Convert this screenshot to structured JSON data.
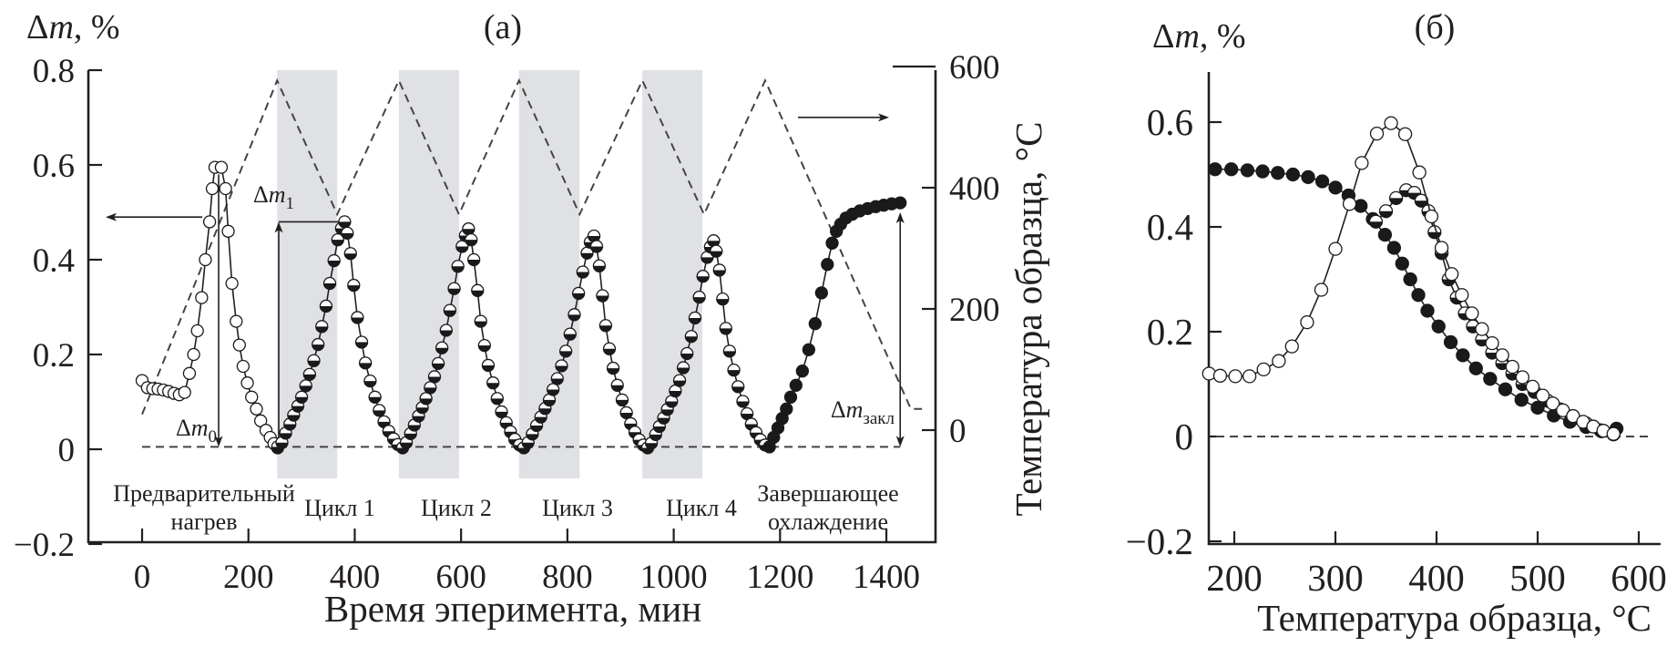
{
  "chart_data": [
    {
      "type": "scatter",
      "panel_label": "(a)",
      "ylabel": {
        "symbol": "Δ",
        "var": "m",
        "unit": ", %"
      },
      "xlabel": "Время эперимента, мин",
      "y2label": "Температура образца, °C",
      "xlim": [
        -100,
        1490
      ],
      "ylim": [
        -0.2,
        0.8
      ],
      "y2lim": [
        -185,
        594
      ],
      "grid": false,
      "xticks": [
        0,
        200,
        400,
        600,
        800,
        1000,
        1200,
        1400
      ],
      "xtick_labels": [
        "0",
        "200",
        "400",
        "600",
        "800",
        "1000",
        "1200",
        "1400"
      ],
      "yticks": [
        0.8,
        0.6,
        0.4,
        0.2,
        0,
        -0.2
      ],
      "ytick_labels": [
        "0.8",
        "0.6",
        "0.4",
        "0.2",
        "0",
        "−0.2"
      ],
      "y2ticks": [
        600,
        400,
        200,
        0
      ],
      "y2tick_labels": [
        "600",
        "400",
        "200",
        "0"
      ],
      "baseline_dm": 0.005,
      "shaded_intervals": [
        [
          254,
          367
        ],
        [
          483,
          596
        ],
        [
          709,
          823
        ],
        [
          941,
          1054
        ]
      ],
      "shade_color": "#e0e1e4",
      "phases": [
        {
          "lines": [
            "Предварительный",
            "нагрев"
          ]
        },
        {
          "lines": [
            "Цикл 1"
          ]
        },
        {
          "lines": [
            "Цикл 2"
          ]
        },
        {
          "lines": [
            "Цикл 3"
          ]
        },
        {
          "lines": [
            "Цикл 4"
          ]
        },
        {
          "lines": [
            "Завершающее",
            "охлаждение"
          ]
        }
      ],
      "temperature": {
        "style": "dashed",
        "t": [
          0,
          254,
          367,
          483,
          596,
          709,
          823,
          941,
          1057,
          1172,
          1446,
          1467
        ],
        "T": [
          26,
          577,
          356,
          577,
          356,
          577,
          356,
          577,
          356,
          577,
          35,
          35
        ]
      },
      "series": [
        {
          "marker": "open",
          "t": [
            0,
            10,
            20,
            30,
            40,
            50,
            60,
            70,
            80,
            89,
            97,
            104,
            112,
            119,
            127,
            132,
            137,
            149,
            157,
            162,
            169,
            177,
            183,
            190,
            198,
            206,
            215,
            223,
            233,
            241,
            248,
            255
          ],
          "dm": [
            0.145,
            0.13,
            0.128,
            0.127,
            0.125,
            0.122,
            0.118,
            0.115,
            0.12,
            0.16,
            0.2,
            0.25,
            0.32,
            0.4,
            0.48,
            0.55,
            0.595,
            0.595,
            0.55,
            0.46,
            0.35,
            0.27,
            0.22,
            0.175,
            0.14,
            0.11,
            0.085,
            0.06,
            0.04,
            0.025,
            0.012,
            0.003
          ]
        },
        {
          "marker": "half-filled",
          "t": [
            255,
            263,
            270,
            278,
            285,
            293,
            300,
            308,
            315,
            323,
            331,
            338,
            346,
            353,
            361,
            368,
            375,
            381,
            386,
            392,
            398,
            405,
            413,
            420,
            429,
            438,
            446,
            455,
            464,
            473,
            481,
            490,
            497,
            505,
            512,
            520,
            527,
            534,
            542,
            550,
            557,
            564,
            572,
            579,
            587,
            594,
            602,
            608,
            614,
            619,
            624,
            631,
            637,
            644,
            651,
            660,
            668,
            676,
            685,
            693,
            701,
            710,
            718,
            726,
            734,
            742,
            750,
            758,
            766,
            773,
            781,
            789,
            797,
            805,
            813,
            821,
            829,
            837,
            843,
            850,
            855,
            860,
            866,
            872,
            879,
            886,
            894,
            903,
            911,
            919,
            927,
            935,
            943,
            951,
            958,
            966,
            973,
            981,
            988,
            996,
            1003,
            1011,
            1018,
            1025,
            1033,
            1040,
            1048,
            1055,
            1063,
            1069,
            1075,
            1080,
            1086,
            1092,
            1098,
            1105,
            1113,
            1121,
            1130,
            1138,
            1146,
            1155,
            1163,
            1172
          ],
          "dm": [
            0.005,
            0.014,
            0.034,
            0.053,
            0.072,
            0.091,
            0.11,
            0.134,
            0.158,
            0.187,
            0.221,
            0.259,
            0.302,
            0.35,
            0.398,
            0.442,
            0.466,
            0.48,
            0.456,
            0.413,
            0.346,
            0.278,
            0.226,
            0.182,
            0.144,
            0.11,
            0.082,
            0.058,
            0.038,
            0.022,
            0.01,
            0.003,
            0.014,
            0.033,
            0.051,
            0.07,
            0.088,
            0.107,
            0.13,
            0.153,
            0.181,
            0.214,
            0.251,
            0.293,
            0.339,
            0.386,
            0.428,
            0.451,
            0.465,
            0.442,
            0.4,
            0.335,
            0.27,
            0.219,
            0.177,
            0.14,
            0.107,
            0.079,
            0.056,
            0.037,
            0.021,
            0.009,
            0.003,
            0.014,
            0.032,
            0.05,
            0.068,
            0.086,
            0.104,
            0.126,
            0.149,
            0.176,
            0.207,
            0.243,
            0.284,
            0.329,
            0.374,
            0.414,
            0.437,
            0.45,
            0.428,
            0.387,
            0.324,
            0.261,
            0.212,
            0.171,
            0.135,
            0.104,
            0.077,
            0.054,
            0.036,
            0.02,
            0.009,
            0.003,
            0.013,
            0.031,
            0.048,
            0.066,
            0.084,
            0.101,
            0.123,
            0.145,
            0.172,
            0.202,
            0.238,
            0.277,
            0.321,
            0.365,
            0.405,
            0.427,
            0.44,
            0.418,
            0.378,
            0.317,
            0.255,
            0.207,
            0.167,
            0.132,
            0.101,
            0.075,
            0.053,
            0.035,
            0.02,
            0.009
          ]
        },
        {
          "marker": "filled",
          "t": [
            1180,
            1188,
            1196,
            1204,
            1212,
            1220,
            1230,
            1242,
            1254,
            1266,
            1278,
            1289,
            1298,
            1306,
            1314,
            1324,
            1336,
            1350,
            1365,
            1380,
            1395,
            1410,
            1426
          ],
          "dm": [
            0.005,
            0.025,
            0.045,
            0.065,
            0.085,
            0.11,
            0.135,
            0.165,
            0.21,
            0.265,
            0.33,
            0.39,
            0.435,
            0.46,
            0.475,
            0.488,
            0.496,
            0.503,
            0.508,
            0.512,
            0.515,
            0.518,
            0.52
          ]
        }
      ],
      "annotations": {
        "dm0": {
          "symbol": "Δ",
          "var": "m",
          "sub": "0",
          "t": 144,
          "from": 0.58,
          "to": 0.005
        },
        "dm1": {
          "symbol": "Δ",
          "var": "m",
          "sub": "1",
          "t": 257,
          "from": 0.48,
          "to": 0.005
        },
        "dm_final": {
          "symbol": "Δ",
          "var": "m",
          "sub": "закл",
          "t": 1426,
          "from": 0.5,
          "to": 0.005
        },
        "left_arrow": {
          "points_to": "left axis",
          "dm": 0.49
        },
        "right_arrow": {
          "points_to": "right axis",
          "T": 516
        }
      }
    },
    {
      "type": "scatter",
      "panel_label": "(б)",
      "ylabel": {
        "symbol": "Δ",
        "var": "m",
        "unit": ", %"
      },
      "xlabel": "Температура образца, °C",
      "xlim": [
        175,
        622
      ],
      "ylim": [
        -0.2,
        0.7
      ],
      "grid": false,
      "xticks": [
        200,
        300,
        400,
        500,
        600
      ],
      "xtick_labels": [
        "200",
        "300",
        "400",
        "500",
        "600"
      ],
      "yticks": [
        0.6,
        0.4,
        0.2,
        0,
        -0.2
      ],
      "ytick_labels": [
        "0.6",
        "0.4",
        "0.2",
        "0",
        "−0.2"
      ],
      "zero_line": "dashed",
      "series": [
        {
          "marker": "filled",
          "T": [
            181,
            197,
            213,
            228,
            243,
            258,
            273,
            287,
            300,
            313,
            325,
            337,
            349,
            358,
            366,
            374,
            382,
            391,
            402,
            414,
            426,
            439,
            453,
            468,
            484,
            500,
            516,
            532,
            548,
            563,
            578
          ],
          "dm": [
            0.51,
            0.51,
            0.508,
            0.506,
            0.503,
            0.5,
            0.495,
            0.487,
            0.475,
            0.46,
            0.44,
            0.415,
            0.385,
            0.36,
            0.33,
            0.3,
            0.27,
            0.24,
            0.21,
            0.18,
            0.155,
            0.13,
            0.11,
            0.09,
            0.07,
            0.055,
            0.04,
            0.028,
            0.018,
            0.01,
            0.015
          ]
        },
        {
          "marker": "half-filled",
          "T": [
            340,
            350,
            360,
            370,
            378,
            385,
            392,
            398,
            405,
            412,
            420,
            428,
            436,
            445,
            455,
            465,
            475,
            485,
            497,
            510,
            522,
            535,
            548,
            562,
            575
          ],
          "dm": [
            0.41,
            0.43,
            0.455,
            0.47,
            0.465,
            0.45,
            0.43,
            0.39,
            0.35,
            0.3,
            0.265,
            0.235,
            0.21,
            0.185,
            0.16,
            0.14,
            0.12,
            0.1,
            0.085,
            0.068,
            0.052,
            0.038,
            0.025,
            0.012,
            0.004
          ]
        },
        {
          "marker": "open",
          "T": [
            175,
            186,
            201,
            215,
            229,
            244,
            257,
            272,
            286,
            300,
            314,
            326,
            341,
            355,
            369,
            383,
            395,
            405,
            415,
            425,
            435,
            445,
            455,
            465,
            475,
            485,
            495,
            505,
            515,
            525,
            535,
            545,
            555,
            565,
            575
          ],
          "dm": [
            0.12,
            0.116,
            0.115,
            0.115,
            0.128,
            0.144,
            0.172,
            0.218,
            0.28,
            0.358,
            0.444,
            0.522,
            0.578,
            0.598,
            0.577,
            0.504,
            0.42,
            0.36,
            0.31,
            0.27,
            0.235,
            0.205,
            0.178,
            0.155,
            0.133,
            0.113,
            0.095,
            0.078,
            0.063,
            0.05,
            0.039,
            0.028,
            0.019,
            0.011,
            0.005
          ]
        }
      ]
    }
  ]
}
